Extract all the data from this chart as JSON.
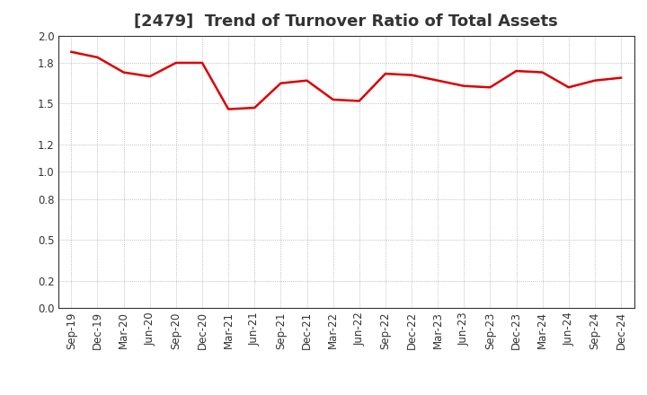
{
  "title": "[2479]  Trend of Turnover Ratio of Total Assets",
  "labels": [
    "Sep-19",
    "Dec-19",
    "Mar-20",
    "Jun-20",
    "Sep-20",
    "Dec-20",
    "Mar-21",
    "Jun-21",
    "Sep-21",
    "Dec-21",
    "Mar-22",
    "Jun-22",
    "Sep-22",
    "Dec-22",
    "Mar-23",
    "Jun-23",
    "Sep-23",
    "Dec-23",
    "Mar-24",
    "Jun-24",
    "Sep-24",
    "Dec-24"
  ],
  "values": [
    1.88,
    1.84,
    1.73,
    1.7,
    1.8,
    1.8,
    1.46,
    1.47,
    1.65,
    1.67,
    1.53,
    1.52,
    1.72,
    1.71,
    1.67,
    1.63,
    1.62,
    1.74,
    1.73,
    1.62,
    1.67,
    1.69
  ],
  "line_color": "#dd0000",
  "line_width": 1.8,
  "ylim": [
    0.0,
    2.0
  ],
  "yticks": [
    0.0,
    0.2,
    0.5,
    0.8,
    1.0,
    1.2,
    1.5,
    1.8,
    2.0
  ],
  "background_color": "#ffffff",
  "grid_color": "#aaaaaa",
  "title_fontsize": 13,
  "tick_fontsize": 8.5,
  "title_color": "#333333"
}
